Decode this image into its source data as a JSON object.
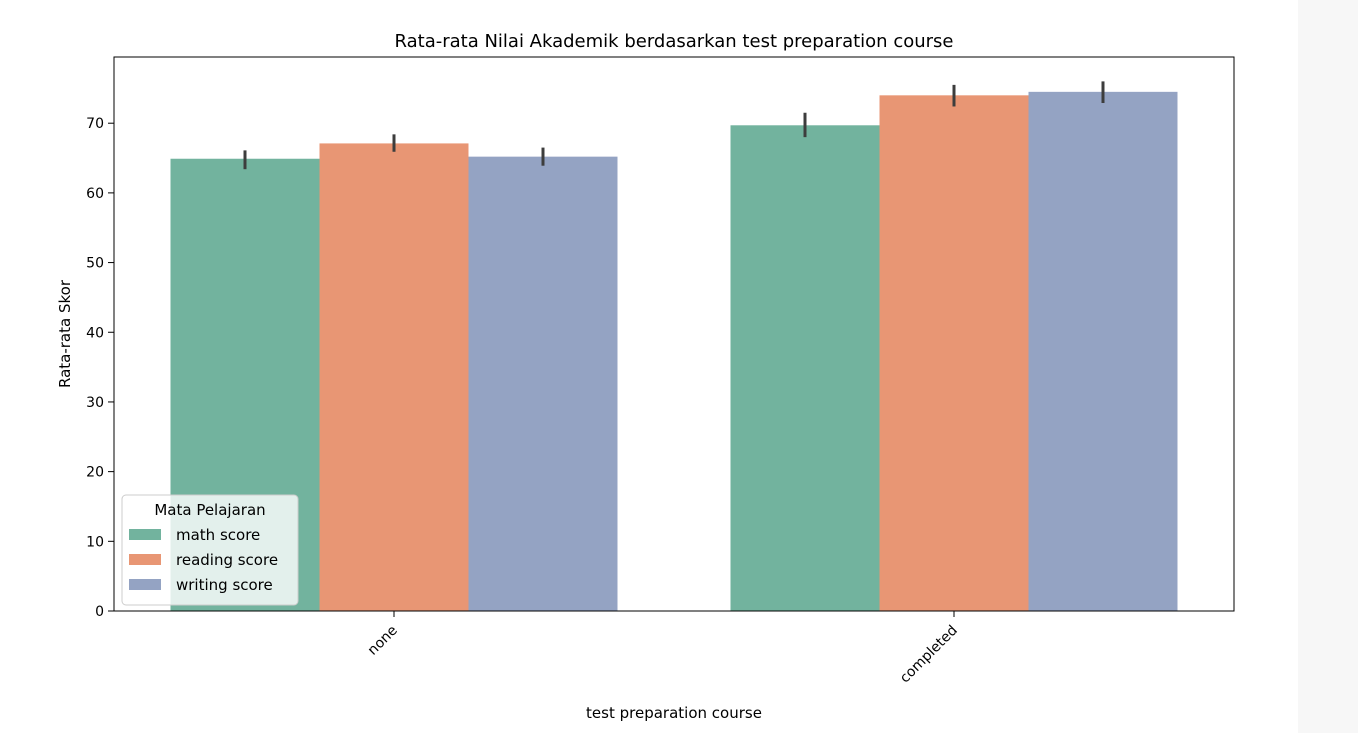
{
  "chart_data": {
    "type": "bar",
    "title": "Rata-rata Nilai Akademik berdasarkan test preparation course",
    "xlabel": "test preparation course",
    "ylabel": "Rata-rata Skor",
    "categories": [
      "none",
      "completed"
    ],
    "series": [
      {
        "name": "math score",
        "color": "#72b39e",
        "values": [
          64.9,
          69.7
        ],
        "ci_low": [
          63.4,
          68.0
        ],
        "ci_high": [
          66.1,
          71.5
        ]
      },
      {
        "name": "reading score",
        "color": "#e89674",
        "values": [
          67.1,
          74.0
        ],
        "ci_low": [
          65.9,
          72.4
        ],
        "ci_high": [
          68.4,
          75.5
        ]
      },
      {
        "name": "writing score",
        "color": "#94a3c3",
        "values": [
          65.2,
          74.5
        ],
        "ci_low": [
          63.9,
          72.9
        ],
        "ci_high": [
          66.5,
          76.0
        ]
      }
    ],
    "yticks": [
      0,
      10,
      20,
      30,
      40,
      50,
      60,
      70
    ],
    "ylim": [
      0,
      79.5
    ],
    "grid": false,
    "legend": {
      "title": "Mata Pelajaran",
      "placement": "lower-left"
    }
  }
}
